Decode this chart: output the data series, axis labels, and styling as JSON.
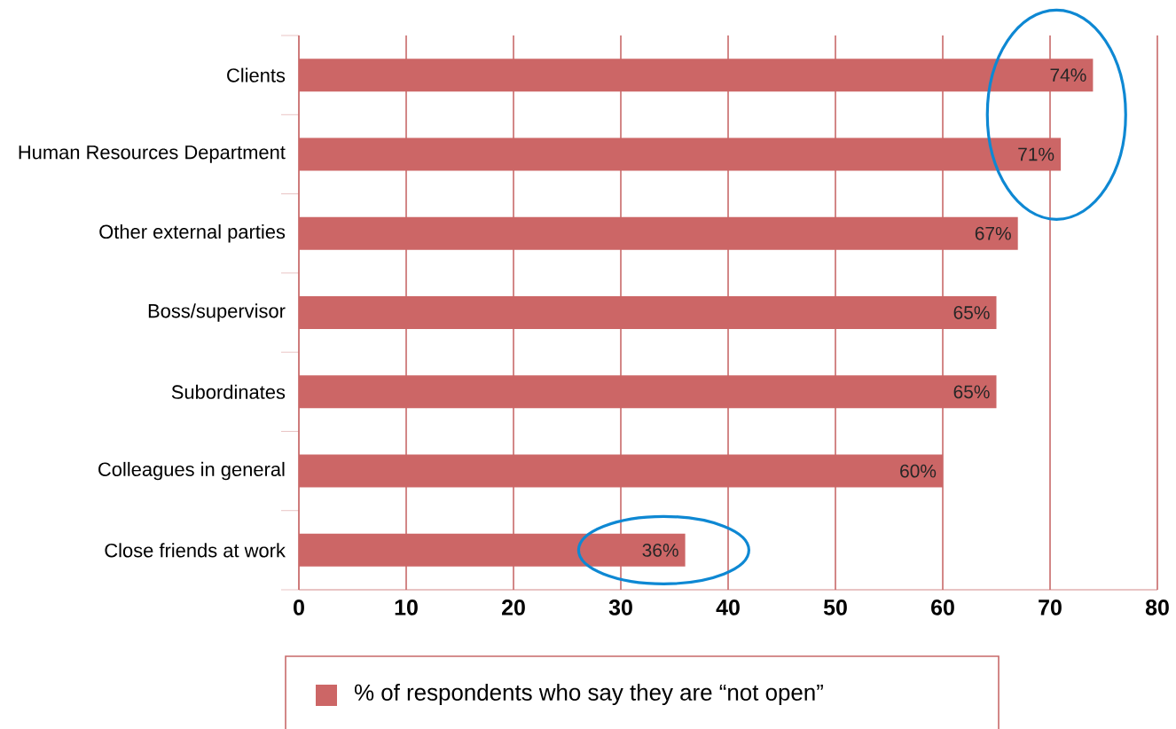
{
  "chart_data": {
    "type": "bar",
    "orientation": "horizontal",
    "categories": [
      "Clients",
      "Human Resources Department",
      "Other external parties",
      "Boss/supervisor",
      "Subordinates",
      "Colleagues in general",
      "Close friends at work"
    ],
    "series": [
      {
        "name": "% of respondents who say they are “not open”",
        "color": "#cc6666",
        "values": [
          74,
          71,
          67,
          65,
          65,
          60,
          36
        ],
        "value_labels": [
          "74%",
          "71%",
          "67%",
          "65%",
          "65%",
          "60%",
          "36%"
        ]
      }
    ],
    "xlim": [
      0,
      80
    ],
    "xticks": [
      0,
      10,
      20,
      30,
      40,
      50,
      60,
      70,
      80
    ],
    "grid": "x",
    "legend": "bottom"
  }
}
